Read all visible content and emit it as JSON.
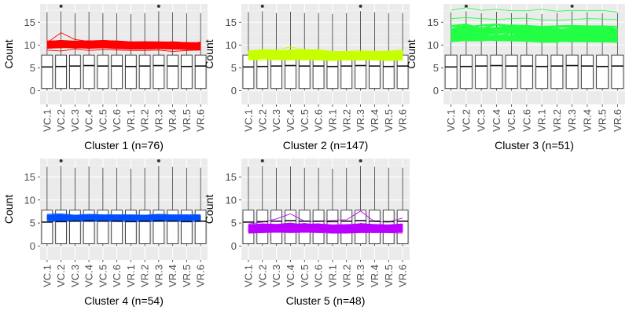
{
  "chart_data": {
    "type": "parallel-lines-over-boxplot",
    "ylabel": "Count",
    "ylim": [
      -3,
      19
    ],
    "yticks": [
      0,
      5,
      10,
      15
    ],
    "categories": [
      "VC.1",
      "VC.2",
      "VC.3",
      "VC.4",
      "VC.5",
      "VC.6",
      "VR.1",
      "VR.2",
      "VR.3",
      "VR.4",
      "VR.5",
      "VR.6"
    ],
    "grid": true,
    "boxplot": {
      "q1": [
        0.5,
        0.5,
        0.5,
        0.5,
        0.5,
        0.5,
        0.5,
        0.5,
        0.5,
        0.5,
        0.5,
        0.5
      ],
      "median": [
        5.2,
        5.3,
        5.4,
        5.5,
        5.4,
        5.4,
        5.3,
        5.4,
        5.5,
        5.4,
        5.3,
        5.4
      ],
      "q3": [
        7.8,
        7.8,
        7.8,
        7.8,
        7.8,
        7.8,
        7.8,
        7.8,
        7.8,
        7.8,
        7.8,
        7.8
      ],
      "whisker_low": [
        0,
        0,
        0,
        0,
        0,
        0,
        0,
        0,
        0,
        0,
        0,
        0
      ],
      "whisker_high": [
        17.2,
        17.4,
        17.0,
        17.3,
        17.0,
        17.0,
        16.8,
        17.0,
        17.4,
        17.2,
        17.0,
        17.0
      ],
      "outliers": [
        [],
        [
          18.5
        ],
        [],
        [],
        [],
        [],
        [],
        [],
        [
          18.5
        ],
        [],
        [],
        []
      ]
    },
    "panels": [
      {
        "label": "Cluster 1 (n=76)",
        "color": "#ff0000",
        "band_low": [
          9.4,
          9.4,
          9.4,
          9.3,
          9.4,
          9.3,
          9.2,
          9.2,
          9.2,
          9.2,
          9.1,
          9.1
        ],
        "band_high": [
          10.8,
          10.9,
          10.8,
          10.8,
          10.9,
          10.8,
          10.6,
          10.6,
          10.6,
          10.6,
          10.5,
          10.4
        ],
        "line_count": 36,
        "extremes": [
          [
            10.5,
            12.7,
            11.2,
            10.8,
            10.5,
            10.4,
            10.3,
            10.2,
            10.3,
            10.2,
            9.9,
            10.7
          ],
          [
            8.9,
            8.7,
            9.1,
            8.8,
            9.0,
            8.9,
            8.8,
            8.8,
            8.9,
            8.6,
            8.8,
            8.9
          ]
        ]
      },
      {
        "label": "Cluster 2 (n=147)",
        "color": "#c8ff00",
        "band_low": [
          6.8,
          6.9,
          6.9,
          6.9,
          6.9,
          6.8,
          6.7,
          6.8,
          6.8,
          6.8,
          6.8,
          6.8
        ],
        "band_high": [
          8.6,
          8.8,
          8.7,
          8.8,
          8.9,
          8.7,
          8.5,
          8.5,
          8.4,
          8.5,
          8.5,
          8.7
        ],
        "line_count": 36,
        "extremes": [
          [
            8.7,
            9.0,
            8.9,
            9.6,
            8.9,
            9.0,
            8.6,
            8.6,
            8.8,
            8.6,
            8.7,
            8.9
          ],
          [
            6.8,
            6.6,
            6.8,
            6.7,
            6.7,
            6.7,
            6.8,
            6.7,
            6.8,
            6.7,
            6.6,
            6.7
          ]
        ]
      },
      {
        "label": "Cluster 3 (n=51)",
        "color": "#22ff44",
        "band_low": [
          10.8,
          11.0,
          11.0,
          11.0,
          11.0,
          10.9,
          10.7,
          10.7,
          10.8,
          10.8,
          10.7,
          10.7
        ],
        "band_high": [
          14.2,
          14.5,
          14.3,
          14.5,
          14.6,
          14.3,
          14.0,
          14.1,
          14.2,
          14.1,
          14.1,
          14.0
        ],
        "line_count": 36,
        "extremes": [
          [
            17.6,
            18.2,
            17.6,
            17.8,
            17.5,
            17.5,
            17.8,
            17.4,
            17.6,
            17.5,
            17.6,
            17.2
          ],
          [
            15.8,
            16.0,
            15.8,
            15.6,
            15.8,
            15.9,
            15.5,
            15.4,
            15.6,
            15.8,
            15.7,
            15.6
          ]
        ]
      },
      {
        "label": "Cluster 4 (n=54)",
        "color": "#0050ff",
        "band_low": [
          5.6,
          5.6,
          5.6,
          5.6,
          5.6,
          5.6,
          5.6,
          5.6,
          5.6,
          5.6,
          5.6,
          5.6
        ],
        "band_high": [
          6.6,
          6.7,
          6.6,
          6.7,
          6.6,
          6.6,
          6.6,
          6.6,
          6.7,
          6.6,
          6.6,
          6.6
        ],
        "line_count": 30,
        "extremes": [
          [
            6.9,
            7.0,
            6.7,
            6.9,
            6.8,
            6.8,
            6.8,
            6.7,
            6.9,
            6.8,
            6.8,
            6.8
          ],
          [
            5.3,
            5.4,
            5.4,
            5.3,
            5.4,
            5.3,
            5.3,
            5.3,
            5.3,
            5.4,
            5.3,
            5.3
          ]
        ]
      },
      {
        "label": "Cluster 5 (n=48)",
        "color": "#bb00ff",
        "band_low": [
          2.9,
          3.0,
          3.1,
          3.2,
          3.1,
          3.1,
          3.0,
          3.0,
          3.1,
          3.0,
          3.0,
          3.1
        ],
        "band_high": [
          4.5,
          4.7,
          4.6,
          4.9,
          4.8,
          4.7,
          4.5,
          4.6,
          4.8,
          4.6,
          4.5,
          4.7
        ],
        "line_count": 36,
        "extremes": [
          [
            4.8,
            5.2,
            5.9,
            7.0,
            5.4,
            5.3,
            5.6,
            5.7,
            7.6,
            5.3,
            5.2,
            6.1
          ],
          [
            2.8,
            2.9,
            3.0,
            2.9,
            3.0,
            2.9,
            2.8,
            2.8,
            2.9,
            2.9,
            2.9,
            2.8
          ]
        ]
      }
    ]
  }
}
